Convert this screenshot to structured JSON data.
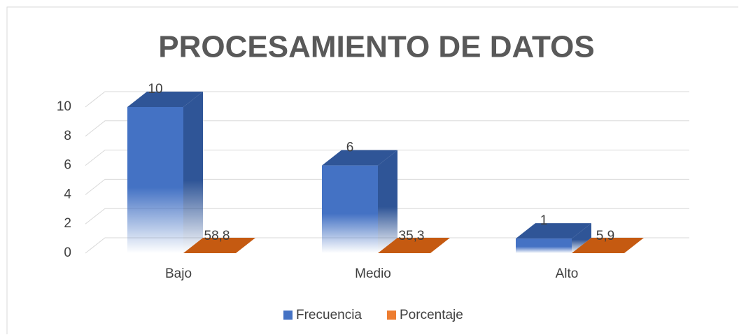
{
  "chart_data": {
    "type": "bar3d",
    "title": "PROCESAMIENTO DE DATOS",
    "categories": [
      "Bajo",
      "Medio",
      "Alto"
    ],
    "series": [
      {
        "name": "Frecuencia",
        "color": "#4472c4",
        "values": [
          10,
          6,
          1
        ]
      },
      {
        "name": "Porcentaje",
        "color": "#ed7d31",
        "values": [
          58.8,
          35.3,
          5.9
        ],
        "value_labels": [
          "58,8",
          "35,3",
          "5,9"
        ]
      }
    ],
    "ylim": [
      0,
      10
    ],
    "yticks": [
      0,
      2,
      4,
      6,
      8,
      10
    ],
    "grid": true,
    "legend": "bottom"
  }
}
